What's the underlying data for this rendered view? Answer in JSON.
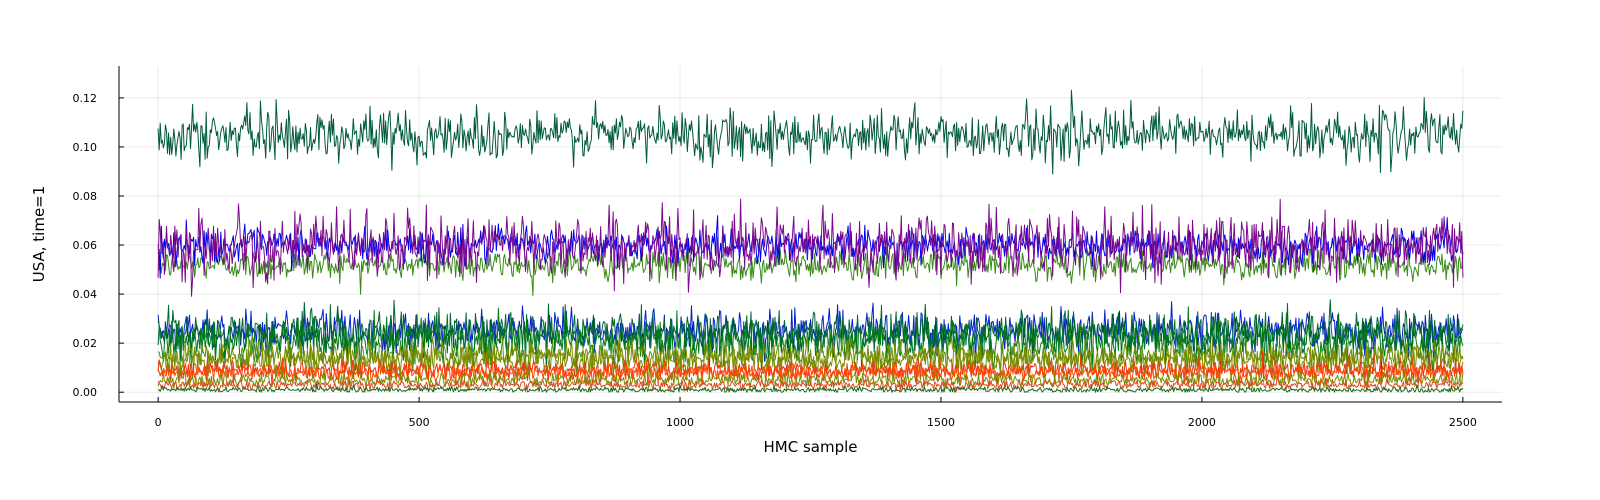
{
  "chart_data": {
    "type": "line",
    "title": "",
    "xlabel": "HMC sample",
    "ylabel": "USA, time=1",
    "xlim": [
      -75,
      2575
    ],
    "ylim": [
      -0.004,
      0.133
    ],
    "xticks": [
      0,
      500,
      1000,
      1500,
      2000,
      2500
    ],
    "xtick_labels": [
      "0",
      "500",
      "1000",
      "1500",
      "2000",
      "2500"
    ],
    "yticks": [
      0.0,
      0.02,
      0.04,
      0.06,
      0.08,
      0.1,
      0.12
    ],
    "ytick_labels": [
      "0.00",
      "0.02",
      "0.04",
      "0.06",
      "0.08",
      "0.10",
      "0.12"
    ],
    "grid": true,
    "legend": "none",
    "n_samples": 2500,
    "series": [
      {
        "mean": 0.052,
        "sd": 0.003,
        "color": "#3a8a1a"
      },
      {
        "mean": 0.06,
        "sd": 0.0035,
        "color": "#0000ee"
      },
      {
        "mean": 0.06,
        "sd": 0.0065,
        "color": "#7b0a8e"
      },
      {
        "mean": 0.105,
        "sd": 0.005,
        "color": "#005a3c"
      },
      {
        "mean": 0.025,
        "sd": 0.004,
        "color": "#0022cc"
      },
      {
        "mean": 0.024,
        "sd": 0.0045,
        "color": "#006633"
      },
      {
        "mean": 0.021,
        "sd": 0.0045,
        "color": "#007a1a"
      },
      {
        "mean": 0.015,
        "sd": 0.003,
        "color": "#6b8e00"
      },
      {
        "mean": 0.013,
        "sd": 0.003,
        "color": "#7a8c00"
      },
      {
        "mean": 0.009,
        "sd": 0.002,
        "color": "#e83a10"
      },
      {
        "mean": 0.008,
        "sd": 0.0018,
        "color": "#ff4500"
      },
      {
        "mean": 0.005,
        "sd": 0.0015,
        "color": "#7a8c00"
      },
      {
        "mean": 0.003,
        "sd": 0.001,
        "color": "#e04a20"
      },
      {
        "mean": 0.001,
        "sd": 0.0006,
        "color": "#1a6a1a"
      }
    ]
  }
}
